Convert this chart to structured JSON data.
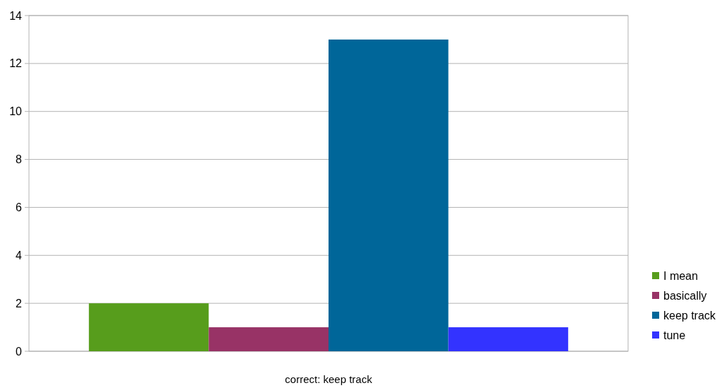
{
  "chart_data": {
    "type": "bar",
    "categories": [
      "correct: keep track"
    ],
    "series": [
      {
        "name": "I mean",
        "color": "#579d1c",
        "values": [
          2
        ]
      },
      {
        "name": "basically",
        "color": "#983366",
        "values": [
          1
        ]
      },
      {
        "name": "keep track",
        "color": "#006699",
        "values": [
          13
        ]
      },
      {
        "name": "tune",
        "color": "#3333ff",
        "values": [
          1
        ]
      }
    ],
    "ylim": [
      0,
      14
    ],
    "yticks": [
      0,
      2,
      4,
      6,
      8,
      10,
      12,
      14
    ],
    "grid": "y",
    "legend": "right"
  }
}
